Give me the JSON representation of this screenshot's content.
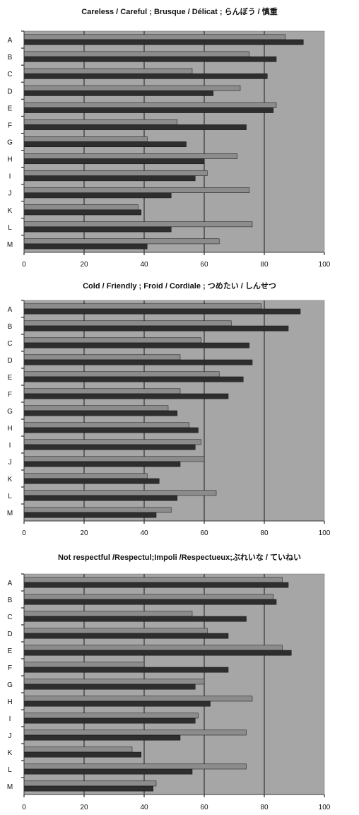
{
  "colors": {
    "plot_background": "#a6a6a6",
    "series_1_bar": "#8c8c8c",
    "series_2_bar": "#2e2e2e",
    "gridline": "#1a1a1a"
  },
  "chart_data": [
    {
      "type": "bar",
      "orientation": "horizontal",
      "title": "Careless / Careful ; Brusque / Délicat ; らんぼう / 慎重",
      "categories": [
        "A",
        "B",
        "C",
        "D",
        "E",
        "F",
        "G",
        "H",
        "I",
        "J",
        "K",
        "L",
        "M"
      ],
      "xlim": [
        0,
        100
      ],
      "xticks": [
        0,
        20,
        40,
        60,
        80,
        100
      ],
      "grid": true,
      "legend": "none",
      "series": [
        {
          "values": [
            87,
            75,
            56,
            72,
            84,
            51,
            41,
            71,
            61,
            75,
            38,
            76,
            65
          ]
        },
        {
          "values": [
            93,
            84,
            81,
            63,
            83,
            74,
            54,
            60,
            57,
            49,
            39,
            49,
            41
          ]
        }
      ]
    },
    {
      "type": "bar",
      "orientation": "horizontal",
      "title": "Cold / Friendly ; Froid / Cordiale ; つめたい / しんせつ",
      "categories": [
        "A",
        "B",
        "C",
        "D",
        "E",
        "F",
        "G",
        "H",
        "I",
        "J",
        "K",
        "L",
        "M"
      ],
      "xlim": [
        0,
        100
      ],
      "xticks": [
        0,
        20,
        40,
        60,
        80,
        100
      ],
      "grid": true,
      "legend": "none",
      "series": [
        {
          "values": [
            79,
            69,
            59,
            52,
            65,
            52,
            48,
            55,
            59,
            60,
            41,
            64,
            49
          ]
        },
        {
          "values": [
            92,
            88,
            75,
            76,
            73,
            68,
            51,
            58,
            57,
            52,
            45,
            51,
            44
          ]
        }
      ]
    },
    {
      "type": "bar",
      "orientation": "horizontal",
      "title": "Not respectful /Respectul;Impoli /Respectueux;ぶれいな / ていねい",
      "categories": [
        "A",
        "B",
        "C",
        "D",
        "E",
        "F",
        "G",
        "H",
        "I",
        "J",
        "K",
        "L",
        "M"
      ],
      "xlim": [
        0,
        100
      ],
      "xticks": [
        0,
        20,
        40,
        60,
        80,
        100
      ],
      "grid": true,
      "legend": "none",
      "series": [
        {
          "values": [
            86,
            83,
            56,
            61,
            86,
            40,
            60,
            76,
            58,
            74,
            36,
            74,
            44
          ]
        },
        {
          "values": [
            88,
            84,
            74,
            68,
            89,
            68,
            57,
            62,
            57,
            52,
            39,
            56,
            43
          ]
        }
      ]
    }
  ]
}
